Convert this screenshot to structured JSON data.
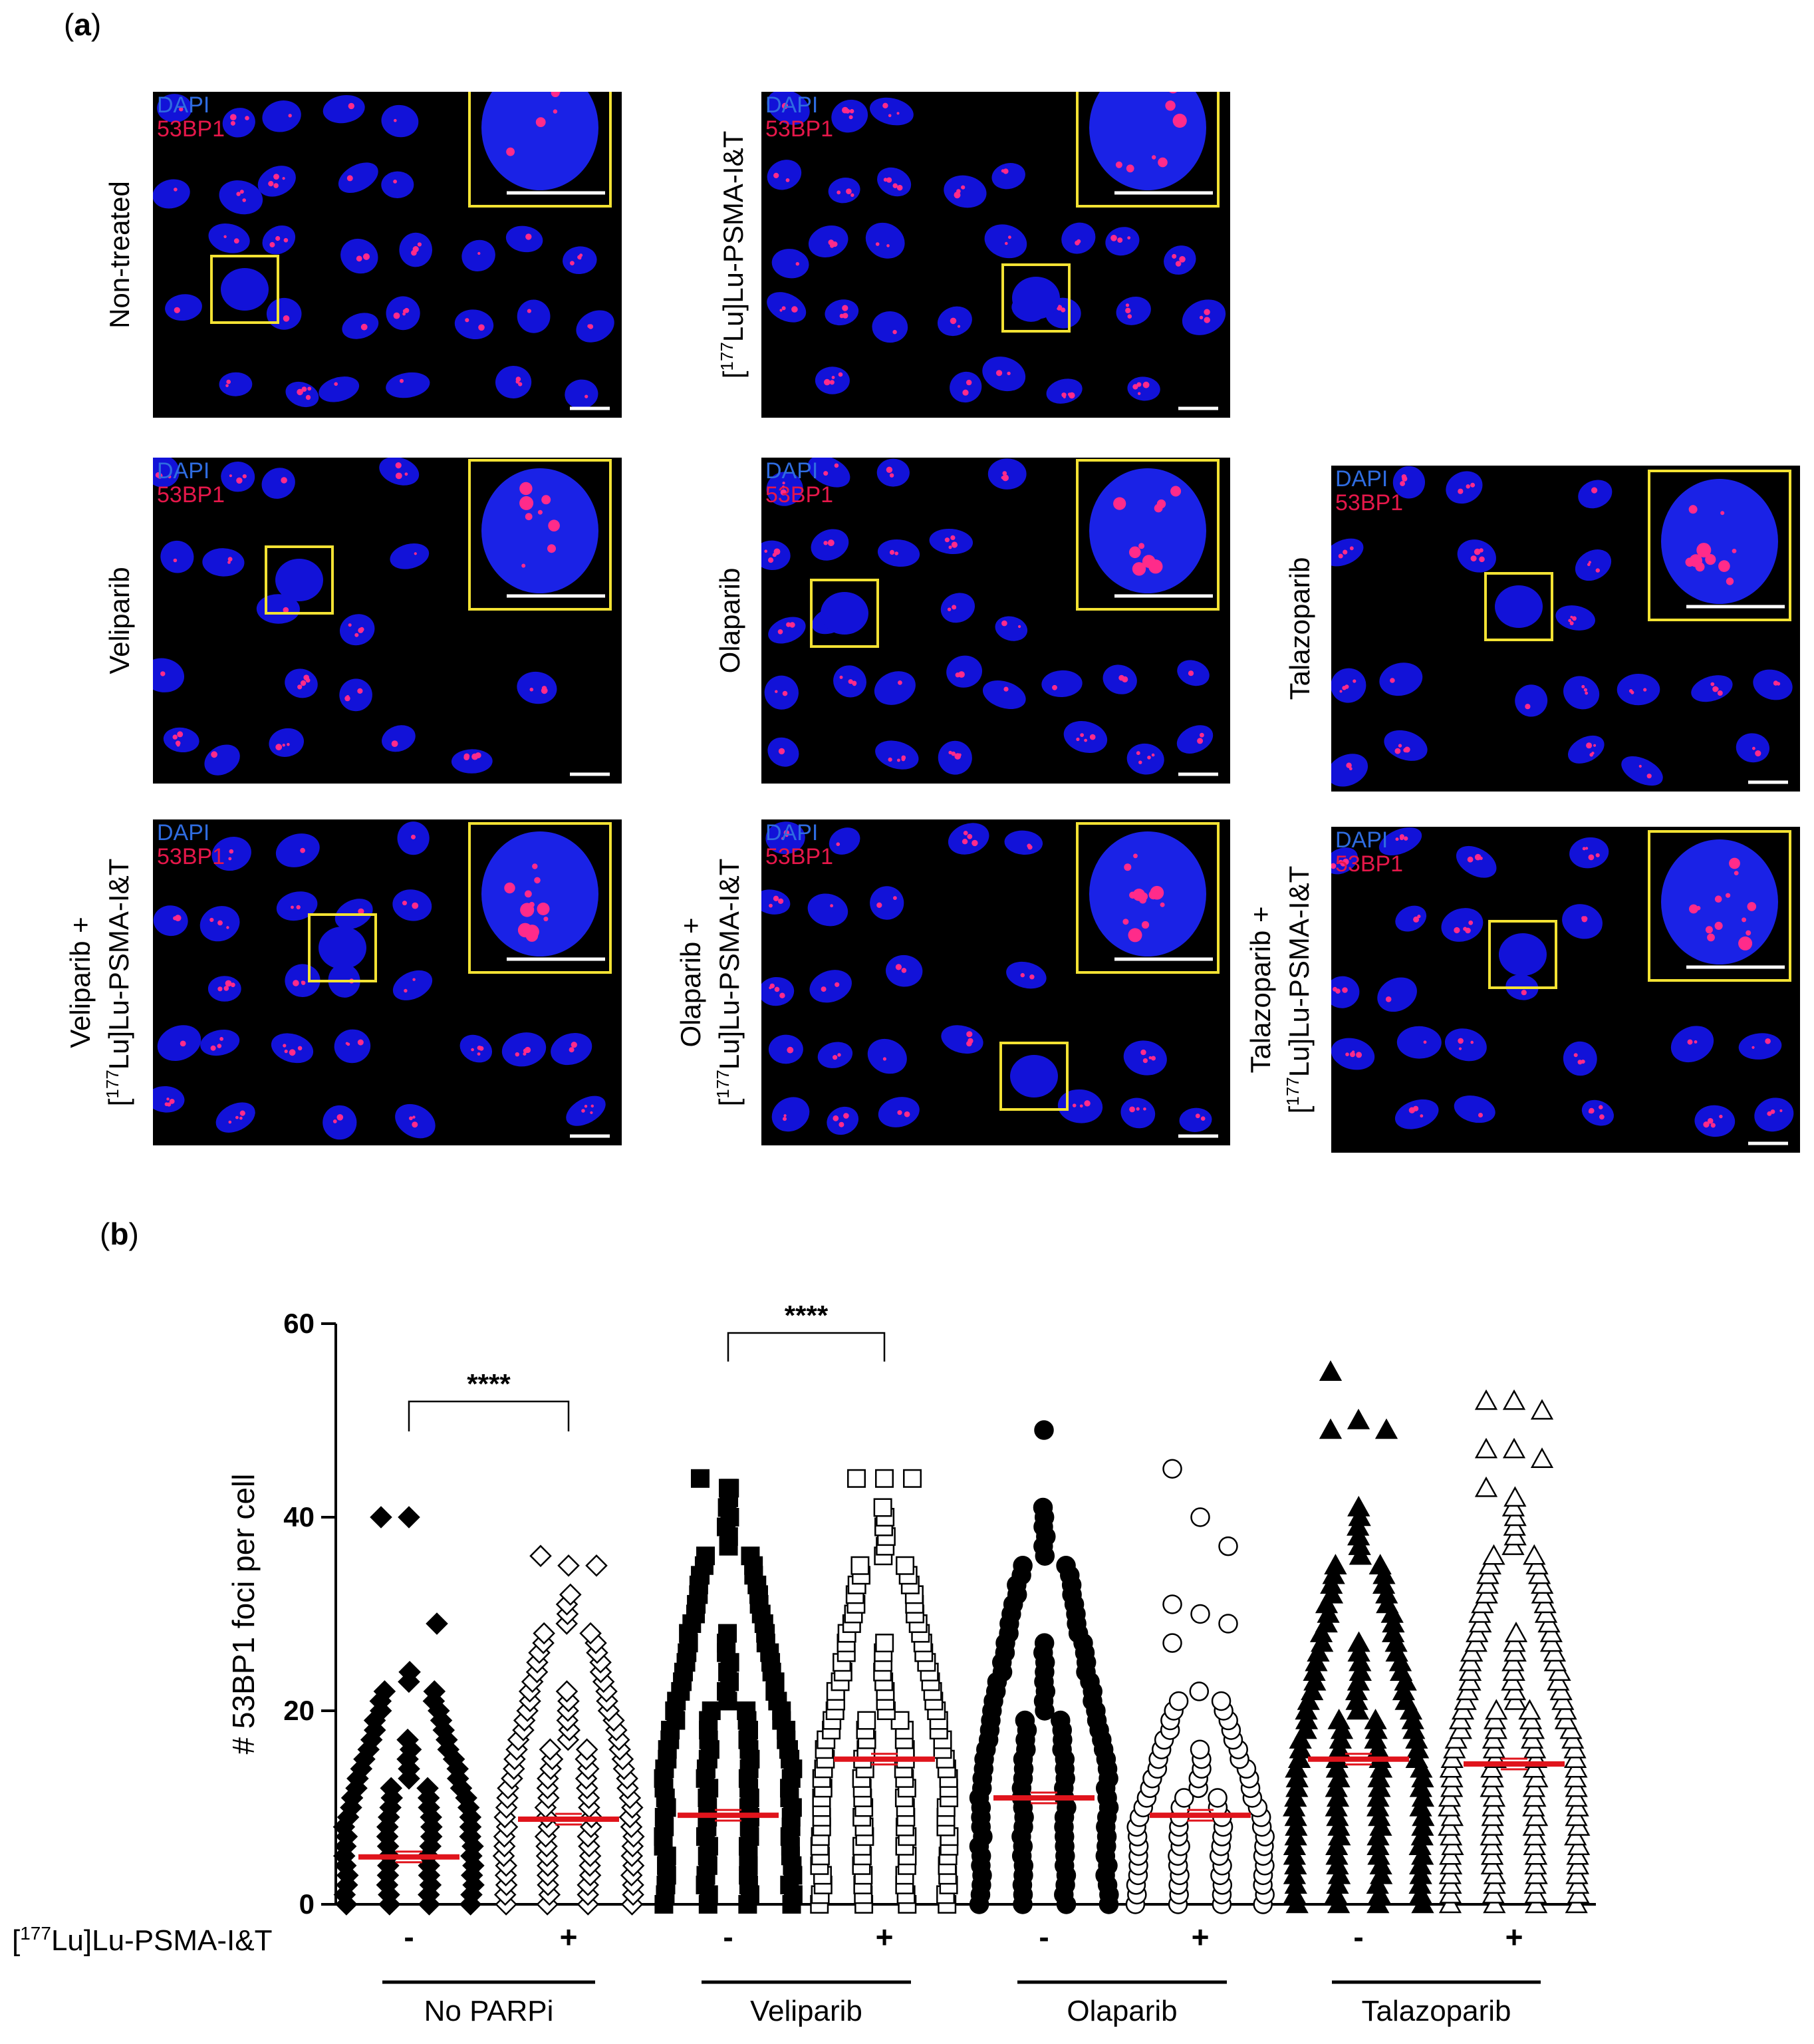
{
  "figure": {
    "panel_a_label": "a",
    "panel_b_label": "b",
    "stain_labels": {
      "dapi": "DAPI",
      "foci": "53BP1"
    },
    "colors": {
      "dapi": "#2f6ce0",
      "foci": "#e5174a",
      "inset_box": "#f3e233",
      "mean_line": "#e0141c"
    },
    "panels": [
      {
        "id": "non-treated",
        "label_lines": [
          "Non-treated"
        ]
      },
      {
        "id": "lu-psma",
        "label_lines": [
          "[177Lu]Lu-PSMA-I&T"
        ]
      },
      {
        "id": "veliparib",
        "label_lines": [
          "Veliparib"
        ]
      },
      {
        "id": "olaparib",
        "label_lines": [
          "Olaparib"
        ]
      },
      {
        "id": "talazoparib",
        "label_lines": [
          "Talazoparib"
        ]
      },
      {
        "id": "veliparib-lu",
        "label_lines": [
          "Veliparib +",
          "[177Lu]Lu-PSMA-I&T"
        ]
      },
      {
        "id": "olaparib-lu",
        "label_lines": [
          "Olaparib +",
          "[177Lu]Lu-PSMA-I&T"
        ]
      },
      {
        "id": "talazoparib-lu",
        "label_lines": [
          "Talazoparib +",
          "[177Lu]Lu-PSMA-I&T"
        ]
      }
    ]
  },
  "chart_data": {
    "type": "scatter",
    "ylabel": "# 53BP1 foci per cell",
    "ylim": [
      0,
      60
    ],
    "yticks": [
      0,
      20,
      40,
      60
    ],
    "treatment_row_label": "[177Lu]Lu-PSMA-I&T",
    "groups": [
      "No PARPi",
      "Veliparib",
      "Olaparib",
      "Talazoparib"
    ],
    "significance": [
      {
        "between": [
          0,
          1
        ],
        "label": "****"
      },
      {
        "between": [
          2,
          3
        ],
        "label": "****"
      }
    ],
    "series": [
      {
        "group": "No PARPi",
        "treatment": "-",
        "marker": "diamond-filled",
        "mean": 4.9,
        "max": 40,
        "outliers": [
          40,
          40,
          29
        ],
        "dense_top": 24
      },
      {
        "group": "No PARPi",
        "treatment": "+",
        "marker": "diamond-open",
        "mean": 8.8,
        "max": 36,
        "outliers": [
          36,
          35,
          35
        ],
        "dense_top": 32
      },
      {
        "group": "Veliparib",
        "treatment": "-",
        "marker": "square-filled",
        "mean": 9.2,
        "max": 44,
        "outliers": [
          44,
          43
        ],
        "dense_top": 43
      },
      {
        "group": "Veliparib",
        "treatment": "+",
        "marker": "square-open",
        "mean": 15.0,
        "max": 44,
        "outliers": [
          44,
          44,
          44
        ],
        "dense_top": 41
      },
      {
        "group": "Olaparib",
        "treatment": "-",
        "marker": "circle-filled",
        "mean": 11.0,
        "max": 49,
        "outliers": [
          49
        ],
        "dense_top": 41
      },
      {
        "group": "Olaparib",
        "treatment": "+",
        "marker": "circle-open",
        "mean": 9.2,
        "max": 45,
        "outliers": [
          45,
          40,
          37,
          31,
          30,
          29,
          27
        ],
        "dense_top": 22
      },
      {
        "group": "Talazoparib",
        "treatment": "-",
        "marker": "triangle-filled",
        "mean": 15.0,
        "max": 55,
        "outliers": [
          55,
          50,
          49,
          49
        ],
        "dense_top": 41
      },
      {
        "group": "Talazoparib",
        "treatment": "+",
        "marker": "triangle-open",
        "mean": 14.5,
        "max": 52,
        "outliers": [
          52,
          52,
          51,
          47,
          47,
          46,
          43
        ],
        "dense_top": 42
      }
    ]
  }
}
